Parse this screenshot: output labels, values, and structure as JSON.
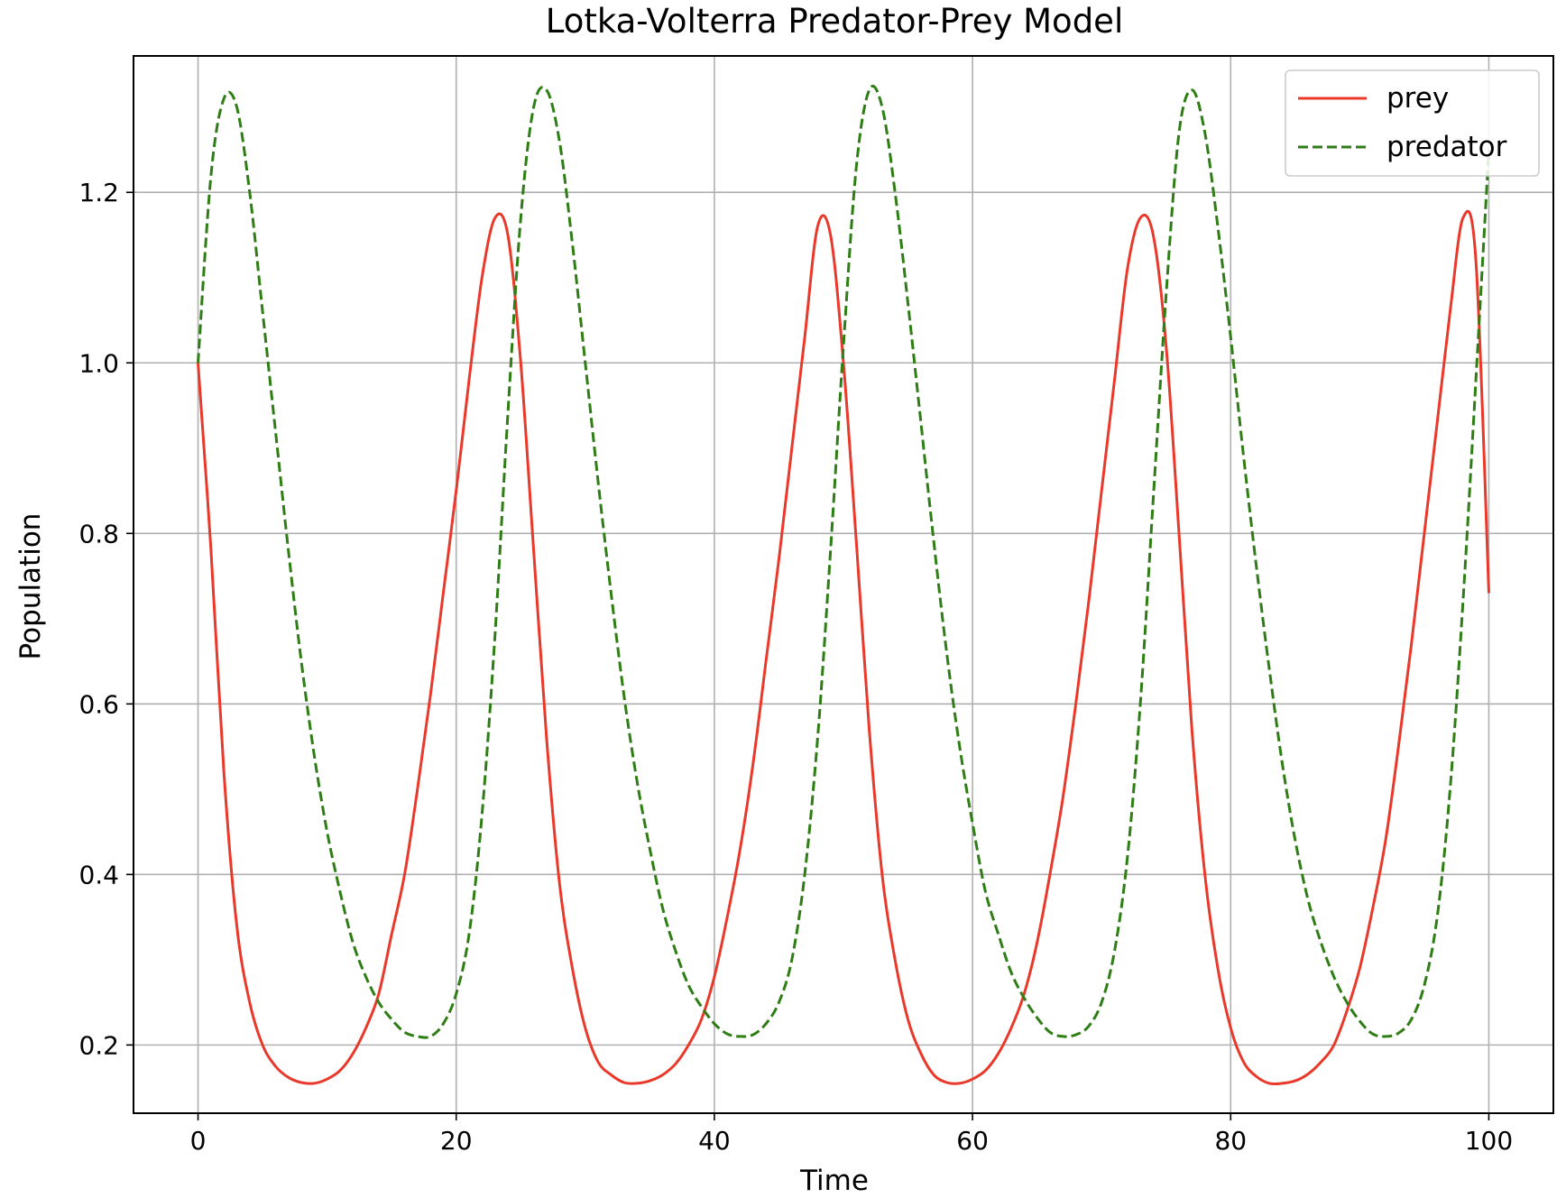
{
  "chart_data": {
    "type": "line",
    "title": "Lotka-Volterra Predator-Prey Model",
    "xlabel": "Time",
    "ylabel": "Population",
    "xlim": [
      -5,
      105
    ],
    "ylim": [
      0.12,
      1.36
    ],
    "xticks": [
      0,
      20,
      40,
      60,
      80,
      100
    ],
    "yticks": [
      0.2,
      0.4,
      0.6,
      0.8,
      1.0,
      1.2
    ],
    "xtick_labels": [
      "0",
      "20",
      "40",
      "60",
      "80",
      "100"
    ],
    "ytick_labels": [
      "0.2",
      "0.4",
      "0.6",
      "0.8",
      "1.0",
      "1.2"
    ],
    "grid": true,
    "legend_position": "top-right",
    "series": [
      {
        "name": "prey",
        "color": "#e8392b",
        "style": "solid",
        "x": [
          0,
          1,
          2,
          3,
          4,
          5,
          6,
          7,
          8,
          9,
          10,
          11,
          12,
          13,
          14,
          15,
          16,
          17,
          18,
          19,
          20,
          21,
          22,
          23,
          24,
          25,
          26,
          27,
          28,
          29,
          30,
          31,
          32,
          33,
          34,
          35,
          36,
          37,
          38,
          39,
          40,
          41,
          42,
          43,
          44,
          45,
          46,
          47,
          48,
          49,
          50,
          51,
          52,
          53,
          54,
          55,
          56,
          57,
          58,
          59,
          60,
          61,
          62,
          63,
          64,
          65,
          66,
          67,
          68,
          69,
          70,
          71,
          72,
          73,
          74,
          75,
          76,
          77,
          78,
          79,
          80,
          81,
          82,
          83,
          84,
          85,
          86,
          87,
          88,
          89,
          90,
          91,
          92,
          93,
          94,
          95,
          96,
          97,
          98,
          99,
          100
        ],
        "y": [
          1.0,
          0.78,
          0.52,
          0.34,
          0.25,
          0.2,
          0.175,
          0.162,
          0.156,
          0.155,
          0.16,
          0.17,
          0.19,
          0.22,
          0.26,
          0.33,
          0.4,
          0.5,
          0.61,
          0.73,
          0.85,
          0.98,
          1.1,
          1.17,
          1.15,
          1.0,
          0.78,
          0.56,
          0.39,
          0.29,
          0.22,
          0.18,
          0.165,
          0.156,
          0.155,
          0.158,
          0.165,
          0.178,
          0.2,
          0.23,
          0.28,
          0.35,
          0.43,
          0.53,
          0.65,
          0.77,
          0.9,
          1.03,
          1.16,
          1.15,
          1.0,
          0.79,
          0.57,
          0.4,
          0.3,
          0.23,
          0.19,
          0.165,
          0.156,
          0.155,
          0.16,
          0.17,
          0.19,
          0.22,
          0.26,
          0.32,
          0.4,
          0.49,
          0.6,
          0.72,
          0.85,
          0.98,
          1.11,
          1.17,
          1.15,
          1.02,
          0.8,
          0.57,
          0.4,
          0.29,
          0.22,
          0.18,
          0.163,
          0.155,
          0.155,
          0.158,
          0.166,
          0.18,
          0.2,
          0.24,
          0.29,
          0.36,
          0.44,
          0.55,
          0.67,
          0.8,
          0.93,
          1.06,
          1.17,
          1.12,
          0.73
        ]
      },
      {
        "name": "predator",
        "color": "#2e7d15",
        "style": "dashed",
        "x": [
          0,
          1,
          2,
          3,
          4,
          5,
          6,
          7,
          8,
          9,
          10,
          11,
          12,
          13,
          14,
          15,
          16,
          17,
          18,
          19,
          20,
          21,
          22,
          23,
          24,
          25,
          26,
          27,
          28,
          29,
          30,
          31,
          32,
          33,
          34,
          35,
          36,
          37,
          38,
          39,
          40,
          41,
          42,
          43,
          44,
          45,
          46,
          47,
          48,
          49,
          50,
          51,
          52,
          53,
          54,
          55,
          56,
          57,
          58,
          59,
          60,
          61,
          62,
          63,
          64,
          65,
          66,
          67,
          68,
          69,
          70,
          71,
          72,
          73,
          74,
          75,
          76,
          77,
          78,
          79,
          80,
          81,
          82,
          83,
          84,
          85,
          86,
          87,
          88,
          89,
          90,
          91,
          92,
          93,
          94,
          95,
          96,
          97,
          98,
          99,
          100
        ],
        "y": [
          1.0,
          1.22,
          1.31,
          1.3,
          1.2,
          1.06,
          0.92,
          0.78,
          0.65,
          0.54,
          0.45,
          0.38,
          0.32,
          0.28,
          0.25,
          0.23,
          0.215,
          0.21,
          0.21,
          0.225,
          0.26,
          0.33,
          0.47,
          0.68,
          0.94,
          1.17,
          1.3,
          1.32,
          1.26,
          1.14,
          1.0,
          0.86,
          0.73,
          0.61,
          0.51,
          0.43,
          0.36,
          0.31,
          0.27,
          0.245,
          0.225,
          0.213,
          0.21,
          0.212,
          0.225,
          0.25,
          0.3,
          0.4,
          0.56,
          0.78,
          1.02,
          1.23,
          1.32,
          1.3,
          1.2,
          1.07,
          0.93,
          0.79,
          0.66,
          0.55,
          0.46,
          0.38,
          0.33,
          0.285,
          0.255,
          0.232,
          0.215,
          0.21,
          0.212,
          0.222,
          0.25,
          0.31,
          0.42,
          0.6,
          0.84,
          1.08,
          1.27,
          1.32,
          1.27,
          1.16,
          1.03,
          0.89,
          0.76,
          0.64,
          0.53,
          0.44,
          0.37,
          0.32,
          0.28,
          0.25,
          0.228,
          0.213,
          0.21,
          0.214,
          0.23,
          0.27,
          0.35,
          0.5,
          0.72,
          0.98,
          1.25
        ]
      }
    ]
  }
}
